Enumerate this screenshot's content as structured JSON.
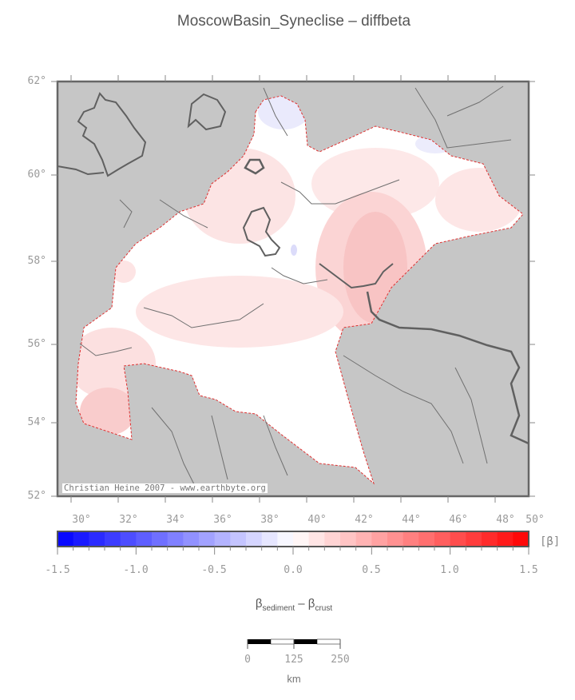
{
  "title": "MoscowBasin_Syneclise – diffbeta",
  "credit": "Christian Heine 2007 - www.earthbyte.org",
  "map": {
    "lat_labels": [
      "62°",
      "60°",
      "58°",
      "56°",
      "54°",
      "52°"
    ],
    "lon_labels": [
      "30°",
      "32°",
      "34°",
      "36°",
      "38°",
      "40°",
      "42°",
      "44°",
      "46°",
      "48°",
      "50°"
    ],
    "colors": {
      "land": "#c6c6c6",
      "basin": "#ffffff",
      "outline": "#e03030",
      "coast": "#606060",
      "river": "#707070"
    }
  },
  "colorbar": {
    "unit": "[β]",
    "tick_labels": [
      "-1.5",
      "-1.0",
      "-0.5",
      "0.0",
      "0.5",
      "1.0",
      "1.5"
    ],
    "min": -1.5,
    "max": 1.5,
    "low_color": "#0000ff",
    "mid_color": "#ffffff",
    "high_color": "#ff0000"
  },
  "formula": {
    "beta1": "β",
    "sub1": "sediment",
    "minus": " – ",
    "beta2": "β",
    "sub2": "crust"
  },
  "scalebar": {
    "ticks": [
      "0",
      "125",
      "250"
    ],
    "unit": "km"
  }
}
